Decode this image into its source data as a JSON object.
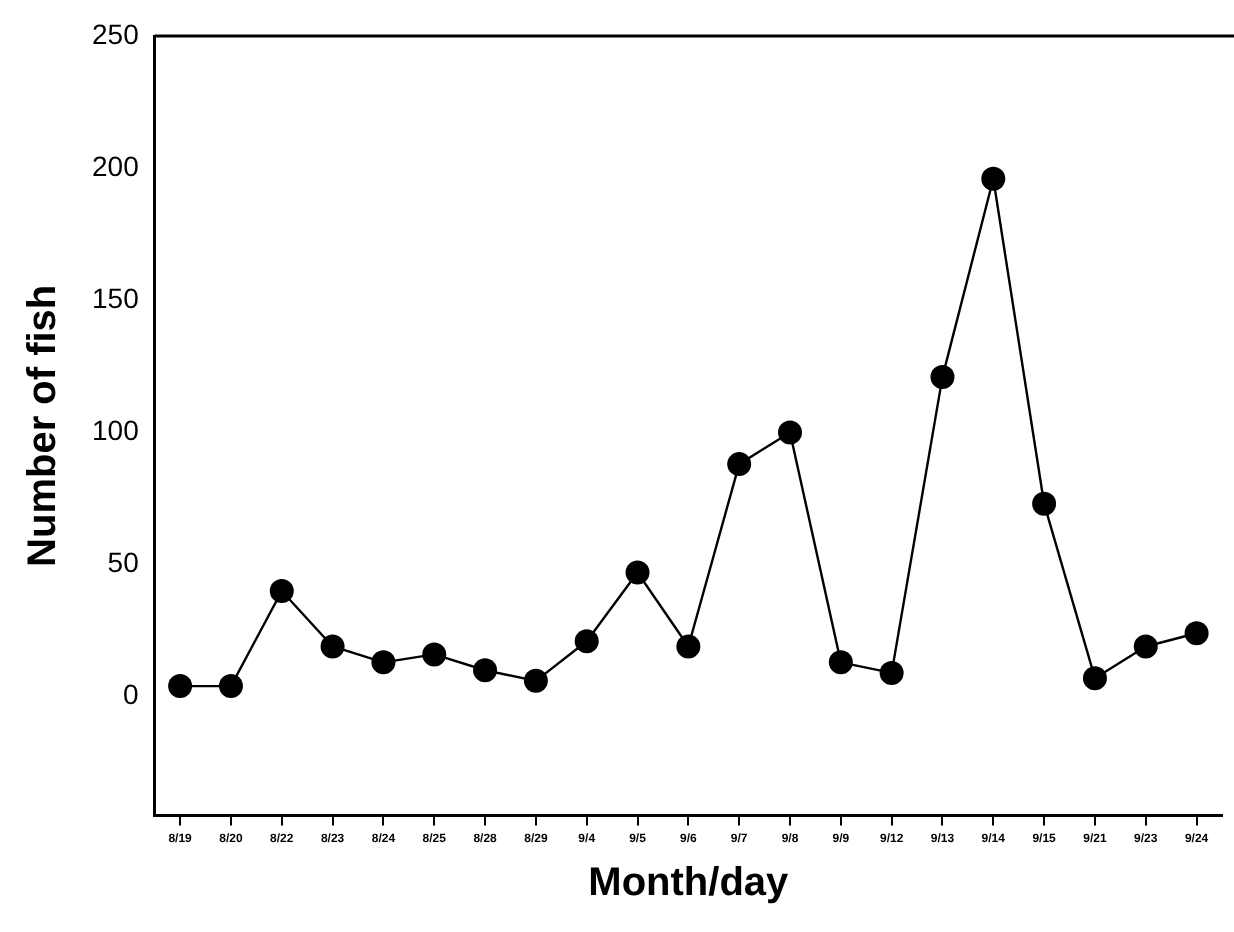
{
  "chart_data": {
    "type": "line",
    "xlabel": "Month/day",
    "ylabel": "Number of fish",
    "categories": [
      "8/19",
      "8/20",
      "8/22",
      "8/23",
      "8/24",
      "8/25",
      "8/28",
      "8/29",
      "9/4",
      "9/5",
      "9/6",
      "9/7",
      "9/8",
      "9/9",
      "9/12",
      "9/13",
      "9/14",
      "9/15",
      "9/21",
      "9/23",
      "9/24"
    ],
    "series": [
      {
        "color": "#000000",
        "values": [
          4,
          4,
          40,
          19,
          13,
          16,
          10,
          6,
          21,
          47,
          19,
          88,
          100,
          13,
          9,
          121,
          196,
          73,
          7,
          19,
          24
        ]
      }
    ],
    "ylim": [
      -45,
      250
    ],
    "yticks": [
      0,
      50,
      100,
      150,
      200,
      250
    ],
    "grid": false,
    "legend": false,
    "marker": "circle",
    "line_style": "solid"
  }
}
